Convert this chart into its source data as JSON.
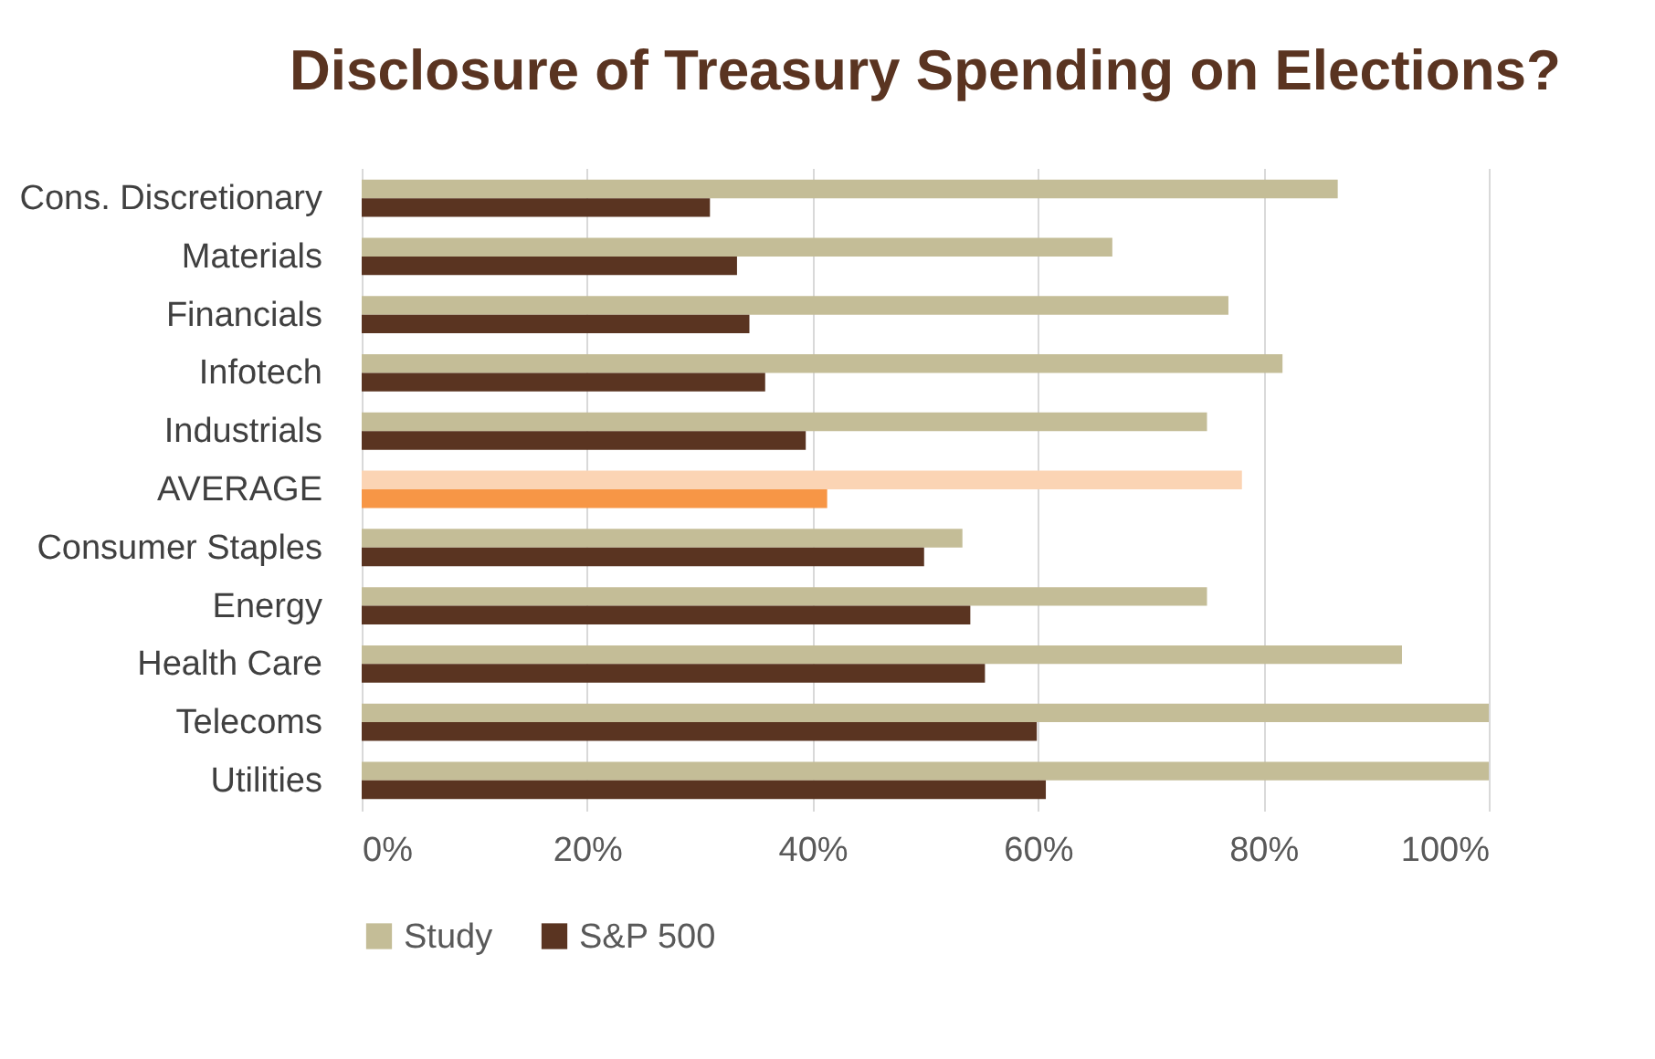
{
  "chart_data": {
    "type": "bar",
    "orientation": "horizontal",
    "title": "Disclosure of Treasury Spending on Elections?",
    "categories": [
      "Cons. Discretionary",
      "Materials",
      "Financials",
      "Infotech",
      "Industrials",
      "AVERAGE",
      "Consumer Staples",
      "Energy",
      "Health Care",
      "Telecoms",
      "Utilities"
    ],
    "series": [
      {
        "name": "Study",
        "color": "#c4bd97",
        "colors": [
          "#c4bd97",
          "#c4bd97",
          "#c4bd97",
          "#c4bd97",
          "#c4bd97",
          "#fbd4b4",
          "#c4bd97",
          "#c4bd97",
          "#c4bd97",
          "#c4bd97",
          "#c4bd97"
        ],
        "values": [
          86.6,
          66.6,
          76.9,
          81.7,
          75.0,
          78.1,
          53.3,
          75.0,
          92.3,
          100,
          100
        ]
      },
      {
        "name": "S&P 500",
        "color": "#5a3421",
        "colors": [
          "#5a3421",
          "#5a3421",
          "#5a3421",
          "#5a3421",
          "#5a3421",
          "#f79646",
          "#5a3421",
          "#5a3421",
          "#5a3421",
          "#5a3421",
          "#5a3421"
        ],
        "values": [
          30.9,
          33.3,
          34.4,
          35.8,
          39.4,
          41.3,
          49.9,
          54.0,
          55.3,
          59.9,
          60.7
        ]
      }
    ],
    "xlim": [
      0,
      100
    ],
    "xticks": [
      {
        "value": 0,
        "label": "0%"
      },
      {
        "value": 20,
        "label": "20%"
      },
      {
        "value": 40,
        "label": "40%"
      },
      {
        "value": 60,
        "label": "60%"
      },
      {
        "value": 80,
        "label": "80%"
      },
      {
        "value": 100,
        "label": "100%"
      }
    ],
    "grid": "x",
    "legend": "bottom"
  }
}
